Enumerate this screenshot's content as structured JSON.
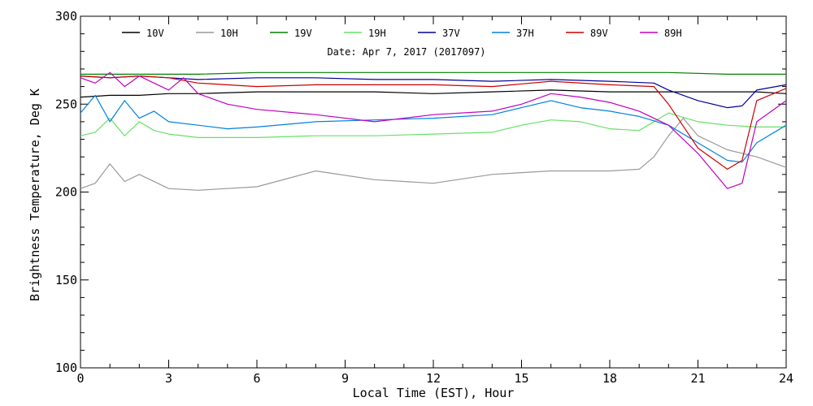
{
  "chart_data": {
    "type": "line",
    "xlabel": "Local Time (EST), Hour",
    "ylabel": "Brightness Temperature, Deg K",
    "annotation": "Date: Apr  7, 2017 (2017097)",
    "xlim": [
      0,
      24
    ],
    "ylim": [
      100,
      300
    ],
    "x_ticks": [
      0,
      3,
      6,
      9,
      12,
      15,
      18,
      21,
      24
    ],
    "y_ticks": [
      100,
      150,
      200,
      250,
      300
    ],
    "grid": false,
    "legend": "top",
    "series": [
      {
        "name": "10V",
        "color": "#000000",
        "x": [
          0,
          1,
          2,
          3,
          4,
          6,
          8,
          10,
          12,
          14,
          16,
          18,
          19.5,
          20,
          21,
          22,
          23,
          24
        ],
        "y": [
          254,
          255,
          255,
          256,
          256,
          257,
          257,
          257,
          256,
          257,
          258,
          257,
          257,
          257,
          257,
          257,
          257,
          256
        ]
      },
      {
        "name": "10H",
        "color": "#999999",
        "x": [
          0,
          0.5,
          1,
          1.5,
          2,
          3,
          4,
          6,
          8,
          10,
          12,
          14,
          16,
          18,
          19,
          19.5,
          20,
          20.5,
          21,
          22,
          23,
          24
        ],
        "y": [
          202,
          205,
          216,
          206,
          210,
          202,
          201,
          203,
          212,
          207,
          205,
          210,
          212,
          212,
          213,
          220,
          232,
          242,
          232,
          224,
          220,
          214
        ]
      },
      {
        "name": "19V",
        "color": "#008000",
        "x": [
          0,
          2,
          4,
          6,
          8,
          10,
          12,
          14,
          16,
          18,
          20,
          22,
          24
        ],
        "y": [
          267,
          267,
          267,
          268,
          268,
          268,
          268,
          268,
          268,
          268,
          268,
          267,
          267
        ]
      },
      {
        "name": "19H",
        "color": "#66e066",
        "x": [
          0,
          0.5,
          1,
          1.5,
          2,
          2.5,
          3,
          4,
          6,
          8,
          10,
          12,
          14,
          15,
          16,
          17,
          18,
          19,
          20,
          21,
          22,
          23,
          24
        ],
        "y": [
          232,
          234,
          242,
          232,
          240,
          235,
          233,
          231,
          231,
          232,
          232,
          233,
          234,
          238,
          241,
          240,
          236,
          235,
          245,
          240,
          238,
          237,
          237
        ]
      },
      {
        "name": "37V",
        "color": "#000099",
        "x": [
          0,
          1,
          2,
          3,
          4,
          6,
          8,
          10,
          12,
          14,
          16,
          18,
          19.5,
          20,
          21,
          22,
          22.5,
          23,
          24
        ],
        "y": [
          266,
          265,
          266,
          265,
          264,
          265,
          265,
          264,
          264,
          263,
          264,
          263,
          262,
          258,
          252,
          248,
          249,
          258,
          261
        ]
      },
      {
        "name": "37H",
        "color": "#0080e0",
        "x": [
          0,
          0.5,
          1,
          1.5,
          2,
          2.5,
          3,
          4,
          5,
          6,
          8,
          10,
          12,
          14,
          15,
          16,
          17,
          18,
          19,
          20,
          21,
          22,
          22.5,
          23,
          24
        ],
        "y": [
          245,
          255,
          240,
          252,
          242,
          246,
          240,
          238,
          236,
          237,
          240,
          241,
          242,
          244,
          248,
          252,
          248,
          246,
          243,
          238,
          228,
          218,
          217,
          228,
          238
        ]
      },
      {
        "name": "89V",
        "color": "#cc0000",
        "x": [
          0,
          1,
          2,
          3,
          4,
          6,
          8,
          10,
          12,
          14,
          16,
          18,
          19.5,
          20,
          21,
          22,
          22.5,
          23,
          24
        ],
        "y": [
          266,
          265,
          266,
          265,
          262,
          260,
          261,
          261,
          261,
          260,
          263,
          261,
          260,
          250,
          225,
          213,
          218,
          252,
          259
        ]
      },
      {
        "name": "89H",
        "color": "#c000c0",
        "x": [
          0,
          0.5,
          1,
          1.5,
          2,
          2.5,
          3,
          3.5,
          4,
          5,
          6,
          8,
          10,
          12,
          14,
          15,
          16,
          17,
          18,
          19,
          20,
          21,
          22,
          22.5,
          23,
          24
        ],
        "y": [
          265,
          262,
          268,
          260,
          266,
          262,
          258,
          265,
          256,
          250,
          247,
          244,
          240,
          244,
          246,
          250,
          256,
          254,
          251,
          246,
          238,
          222,
          202,
          205,
          240,
          252
        ]
      }
    ]
  }
}
